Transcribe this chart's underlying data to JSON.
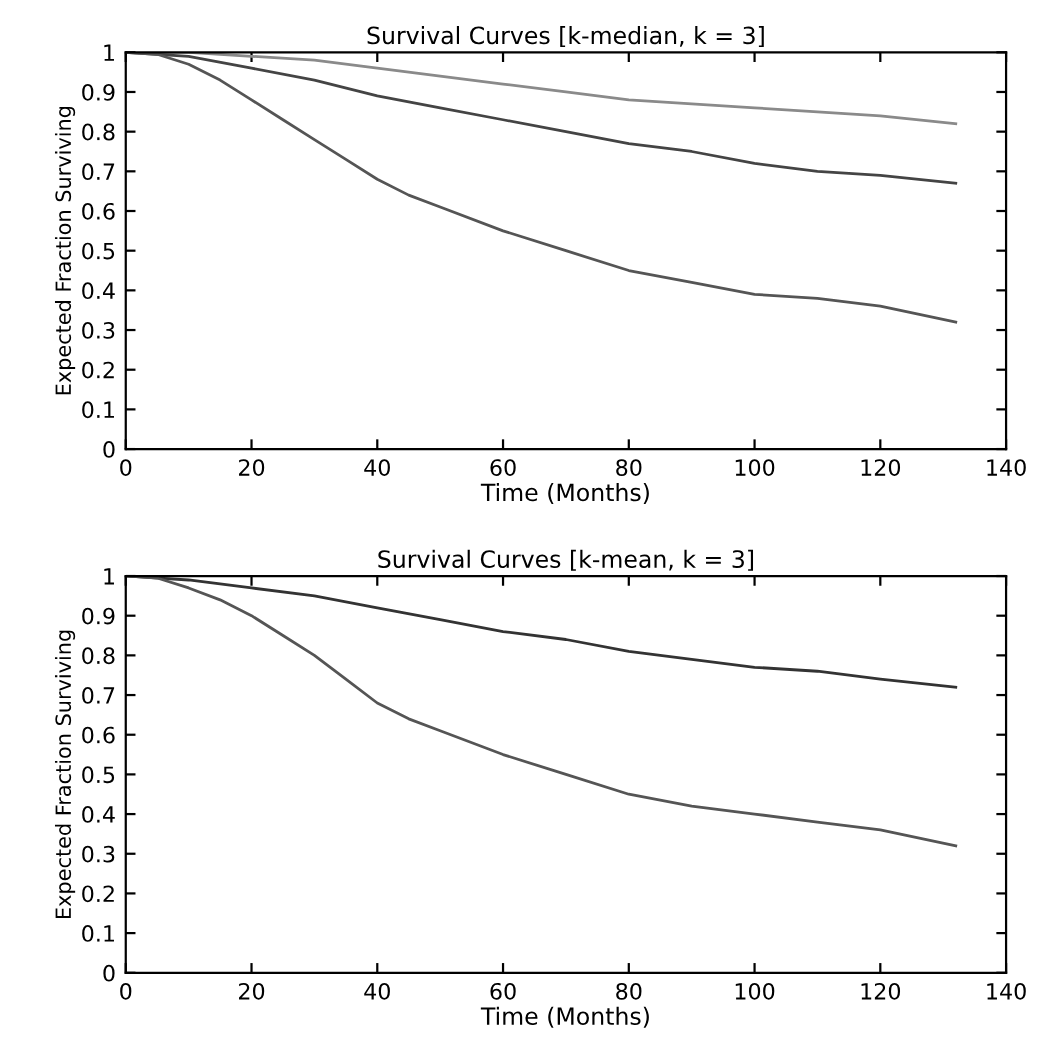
{
  "chart_data": [
    {
      "type": "line",
      "title": "Survival Curves [k-median, k = 3]",
      "xlabel": "Time (Months)",
      "ylabel": "Expected Fraction Surviving",
      "xlim": [
        0,
        140
      ],
      "ylim": [
        0,
        1
      ],
      "xticks": [
        0,
        20,
        40,
        60,
        80,
        100,
        120,
        140
      ],
      "yticks": [
        0,
        0.1,
        0.2,
        0.3,
        0.4,
        0.5,
        0.6,
        0.7,
        0.8,
        0.9,
        1
      ],
      "grid": false,
      "series": [
        {
          "color": "#8a8a8a",
          "x": [
            0,
            10,
            20,
            30,
            40,
            50,
            60,
            70,
            80,
            90,
            100,
            110,
            120,
            132
          ],
          "values": [
            1,
            1,
            0.99,
            0.98,
            0.96,
            0.94,
            0.92,
            0.9,
            0.88,
            0.87,
            0.86,
            0.85,
            0.84,
            0.82
          ]
        },
        {
          "color": "#444444",
          "x": [
            0,
            10,
            20,
            30,
            40,
            50,
            60,
            70,
            80,
            90,
            100,
            110,
            120,
            132
          ],
          "values": [
            1,
            0.99,
            0.96,
            0.93,
            0.89,
            0.86,
            0.83,
            0.8,
            0.77,
            0.75,
            0.72,
            0.7,
            0.69,
            0.67
          ]
        },
        {
          "color": "#555555",
          "x": [
            0,
            5,
            10,
            15,
            20,
            25,
            30,
            35,
            40,
            45,
            50,
            60,
            70,
            80,
            90,
            100,
            110,
            120,
            132
          ],
          "values": [
            1,
            0.995,
            0.97,
            0.93,
            0.88,
            0.83,
            0.78,
            0.73,
            0.68,
            0.64,
            0.61,
            0.55,
            0.5,
            0.45,
            0.42,
            0.39,
            0.38,
            0.36,
            0.32
          ]
        }
      ]
    },
    {
      "type": "line",
      "title": "Survival Curves [k-mean, k = 3]",
      "xlabel": "Time (Months)",
      "ylabel": "Expected Fraction Surviving",
      "xlim": [
        0,
        140
      ],
      "ylim": [
        0,
        1
      ],
      "xticks": [
        0,
        20,
        40,
        60,
        80,
        100,
        120,
        140
      ],
      "yticks": [
        0,
        0.1,
        0.2,
        0.3,
        0.4,
        0.5,
        0.6,
        0.7,
        0.8,
        0.9,
        1
      ],
      "grid": false,
      "series": [
        {
          "color": "#333333",
          "x": [
            0,
            10,
            20,
            30,
            40,
            50,
            60,
            70,
            80,
            90,
            100,
            110,
            120,
            132
          ],
          "values": [
            1,
            0.99,
            0.97,
            0.95,
            0.92,
            0.89,
            0.86,
            0.84,
            0.81,
            0.79,
            0.77,
            0.76,
            0.74,
            0.72
          ]
        },
        {
          "color": "#555555",
          "x": [
            0,
            5,
            10,
            15,
            20,
            25,
            30,
            35,
            40,
            45,
            50,
            60,
            70,
            80,
            90,
            100,
            110,
            120,
            132
          ],
          "values": [
            1,
            0.995,
            0.97,
            0.94,
            0.9,
            0.85,
            0.8,
            0.74,
            0.68,
            0.64,
            0.61,
            0.55,
            0.5,
            0.45,
            0.42,
            0.4,
            0.38,
            0.36,
            0.32
          ]
        }
      ]
    }
  ]
}
